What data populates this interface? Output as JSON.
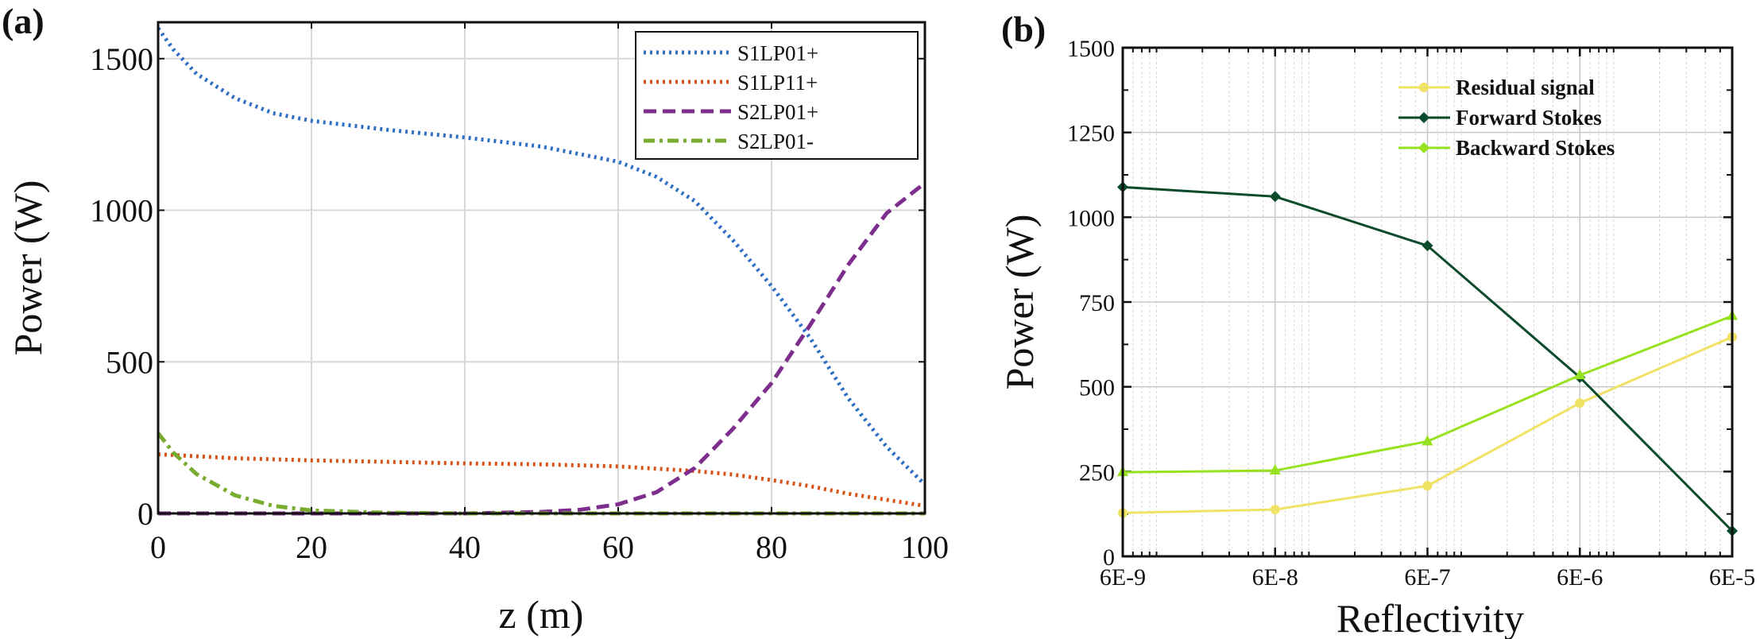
{
  "chart_data": [
    {
      "type": "line",
      "panel_label": "(a)",
      "xlabel": "z (m)",
      "ylabel": "Power (W)",
      "xlim": [
        0,
        100
      ],
      "ylim": [
        0,
        1620
      ],
      "xticks": [
        0,
        20,
        40,
        60,
        80,
        100
      ],
      "yticks": [
        0,
        500,
        1000,
        1500
      ],
      "grid": true,
      "legend_position": "top-right",
      "series": [
        {
          "name": "S1LP01+",
          "color": "#2f6fc4",
          "style": "dotted",
          "x": [
            0,
            2,
            5,
            10,
            15,
            20,
            30,
            40,
            50,
            60,
            65,
            70,
            75,
            80,
            85,
            90,
            95,
            100
          ],
          "y": [
            1600,
            1530,
            1450,
            1370,
            1320,
            1295,
            1265,
            1240,
            1210,
            1160,
            1110,
            1030,
            900,
            750,
            580,
            380,
            220,
            95
          ]
        },
        {
          "name": "S1LP11+",
          "color": "#d95319",
          "style": "dotted",
          "x": [
            0,
            10,
            20,
            30,
            40,
            50,
            60,
            70,
            75,
            80,
            85,
            90,
            95,
            100
          ],
          "y": [
            195,
            182,
            175,
            170,
            165,
            162,
            155,
            140,
            128,
            110,
            90,
            65,
            45,
            25
          ]
        },
        {
          "name": "S2LP01+",
          "color": "#7e2f8e",
          "style": "dashed",
          "x": [
            0,
            20,
            40,
            50,
            55,
            60,
            65,
            70,
            75,
            80,
            85,
            90,
            95,
            100
          ],
          "y": [
            0,
            0,
            0,
            5,
            12,
            30,
            70,
            150,
            280,
            430,
            620,
            820,
            990,
            1090
          ]
        },
        {
          "name": "S2LP01-",
          "color": "#77ac30",
          "style": "dashdot",
          "x": [
            0,
            2,
            5,
            10,
            15,
            20,
            30,
            40,
            60,
            80,
            100
          ],
          "y": [
            265,
            200,
            130,
            60,
            25,
            10,
            2,
            0,
            0,
            0,
            0
          ]
        }
      ]
    },
    {
      "type": "line",
      "panel_label": "(b)",
      "xlabel": "Reflectivity",
      "ylabel": "Power (W)",
      "xscale": "log",
      "categories": [
        "6E-9",
        "6E-8",
        "6E-7",
        "6E-6",
        "6E-5"
      ],
      "x": [
        6e-09,
        6e-08,
        6e-07,
        6e-06,
        6e-05
      ],
      "ylim": [
        0,
        1500
      ],
      "yticks": [
        0,
        250,
        500,
        750,
        1000,
        1250,
        1500
      ],
      "grid": true,
      "legend_position": "top-right",
      "series": [
        {
          "name": "Residual signal",
          "color": "#f0e264",
          "marker": "circle",
          "values": [
            128,
            138,
            208,
            452,
            647
          ]
        },
        {
          "name": "Forward Stokes",
          "color": "#0b4a2b",
          "marker": "diamond",
          "values": [
            1089,
            1061,
            916,
            528,
            75
          ]
        },
        {
          "name": "Backward Stokes",
          "color": "#97e21f",
          "marker": "triangle",
          "values": [
            248,
            253,
            339,
            534,
            709
          ]
        }
      ]
    }
  ]
}
